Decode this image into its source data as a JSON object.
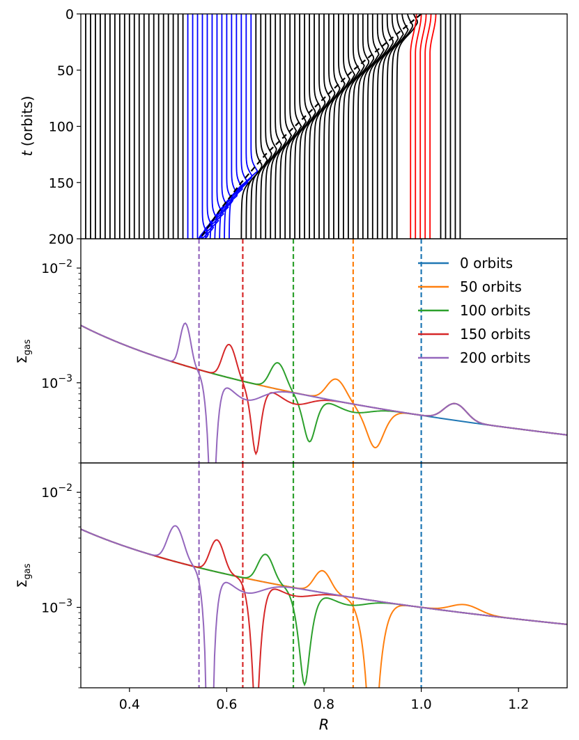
{
  "chart_data": [
    {
      "panel": "top",
      "type": "line",
      "title": "",
      "xlabel": "",
      "ylabel": "(orbits)",
      "ylabel_symbol": "t",
      "xlim": [
        0.3,
        1.3
      ],
      "ylim": [
        200,
        0
      ],
      "y_inverted": true,
      "y_ticks": [
        "0",
        "50",
        "100",
        "150",
        "200"
      ],
      "y_tick_values": [
        0,
        50,
        100,
        150,
        200
      ],
      "description_series": "Fluid-element radial trajectories R(t); black = background, blue = inner group, red = outer group; dashed black = resonance track",
      "line_start_R": {
        "first": 0.31,
        "step": 0.01,
        "count": 78
      },
      "blue_indices": [
        21,
        22,
        23,
        24,
        25,
        26,
        27,
        28,
        29,
        30,
        31,
        32,
        33,
        34
      ],
      "red_indices": [
        68,
        69,
        70,
        71,
        72
      ],
      "dashed_track": {
        "R": [
          1.0,
          0.93,
          0.86,
          0.8,
          0.74,
          0.68,
          0.63,
          0.585,
          0.545
        ],
        "t": [
          0,
          25,
          50,
          75,
          100,
          125,
          150,
          175,
          200
        ]
      },
      "colors": {
        "background": "#000000",
        "inner": "#0000ff",
        "outer": "#ff0000"
      }
    },
    {
      "panel": "middle",
      "type": "line",
      "xlabel": "",
      "ylabel": "gas",
      "ylabel_symbol": "Σ",
      "yscale": "log",
      "xlim": [
        0.3,
        1.3
      ],
      "ylim": [
        0.0002,
        0.018
      ],
      "y_ticks": [
        "10",
        "10"
      ],
      "y_tick_exponents": [
        "−2",
        "−3"
      ],
      "y_tick_values": [
        0.01,
        0.001
      ],
      "legend": {
        "placement": "top-right",
        "entries": [
          "0 orbits",
          "50 orbits",
          "100 orbits",
          "150 orbits",
          "200 orbits"
        ]
      },
      "base_profile": {
        "value_at_R1": 0.00052,
        "slope": -1.5
      },
      "series": [
        {
          "name": "0 orbits",
          "color": "#1f77b4",
          "bumps": []
        },
        {
          "name": "50 orbits",
          "color": "#ff7f0e",
          "bumps": [
            {
              "R": 0.825,
              "a": 0.55,
              "w": 0.025
            },
            {
              "R": 0.905,
              "a": -0.55,
              "w": 0.03
            },
            {
              "R": 1.07,
              "a": 0.4,
              "w": 0.03
            }
          ]
        },
        {
          "name": "100 orbits",
          "color": "#2ca02c",
          "bumps": [
            {
              "R": 0.705,
              "a": 0.7,
              "w": 0.02
            },
            {
              "R": 0.77,
              "a": -0.6,
              "w": 0.022
            },
            {
              "R": 0.86,
              "a": -0.15,
              "w": 0.05
            },
            {
              "R": 1.07,
              "a": 0.4,
              "w": 0.03
            }
          ]
        },
        {
          "name": "150 orbits",
          "color": "#d62728",
          "bumps": [
            {
              "R": 0.605,
              "a": 0.95,
              "w": 0.017
            },
            {
              "R": 0.66,
              "a": -0.75,
              "w": 0.018
            },
            {
              "R": 0.74,
              "a": -0.2,
              "w": 0.045
            },
            {
              "R": 1.07,
              "a": 0.4,
              "w": 0.03
            }
          ]
        },
        {
          "name": "200 orbits",
          "color": "#9467bd",
          "bumps": [
            {
              "R": 0.515,
              "a": 1.35,
              "w": 0.013
            },
            {
              "R": 0.57,
              "a": -1.0,
              "w": 0.017
            },
            {
              "R": 0.64,
              "a": -0.3,
              "w": 0.05
            },
            {
              "R": 1.07,
              "a": 0.4,
              "w": 0.03
            }
          ]
        }
      ],
      "vlines": [
        {
          "R": 1.0,
          "color": "#1f77b4"
        },
        {
          "R": 0.86,
          "color": "#ff7f0e"
        },
        {
          "R": 0.737,
          "color": "#2ca02c"
        },
        {
          "R": 0.633,
          "color": "#d62728"
        },
        {
          "R": 0.543,
          "color": "#9467bd"
        }
      ]
    },
    {
      "panel": "bottom",
      "type": "line",
      "xlabel": "R",
      "ylabel": "gas",
      "ylabel_symbol": "Σ",
      "yscale": "log",
      "xlim": [
        0.3,
        1.3
      ],
      "ylim": [
        0.0002,
        0.018
      ],
      "x_ticks": [
        "0.4",
        "0.6",
        "0.8",
        "1.0",
        "1.2"
      ],
      "x_tick_values": [
        0.4,
        0.6,
        0.8,
        1.0,
        1.2
      ],
      "y_ticks": [
        "10",
        "10"
      ],
      "y_tick_exponents": [
        "−2",
        "−3"
      ],
      "y_tick_values": [
        0.01,
        0.001
      ],
      "base_profile": {
        "value_at_R1": 0.001,
        "slope": -1.3
      },
      "series": [
        {
          "name": "0 orbits",
          "color": "#1f77b4",
          "bumps": []
        },
        {
          "name": "50 orbits",
          "color": "#ff7f0e",
          "bumps": [
            {
              "R": 0.797,
              "a": 0.55,
              "w": 0.022
            },
            {
              "R": 0.9,
              "a": -1.0,
              "w": 0.03
            },
            {
              "R": 1.09,
              "a": 0.18,
              "w": 0.04
            }
          ]
        },
        {
          "name": "100 orbits",
          "color": "#2ca02c",
          "bumps": [
            {
              "R": 0.68,
              "a": 0.75,
              "w": 0.02
            },
            {
              "R": 0.76,
              "a": -0.85,
              "w": 0.024
            },
            {
              "R": 0.85,
              "a": -0.15,
              "w": 0.05
            }
          ]
        },
        {
          "name": "150 orbits",
          "color": "#d62728",
          "bumps": [
            {
              "R": 0.58,
              "a": 0.9,
              "w": 0.018
            },
            {
              "R": 0.66,
              "a": -0.95,
              "w": 0.02
            },
            {
              "R": 0.74,
              "a": -0.15,
              "w": 0.05
            }
          ]
        },
        {
          "name": "200 orbits",
          "color": "#9467bd",
          "bumps": [
            {
              "R": 0.495,
              "a": 1.05,
              "w": 0.02
            },
            {
              "R": 0.565,
              "a": -1.1,
              "w": 0.018
            },
            {
              "R": 0.64,
              "a": -0.25,
              "w": 0.05
            }
          ]
        }
      ],
      "vlines": [
        {
          "R": 1.0,
          "color": "#1f77b4"
        },
        {
          "R": 0.86,
          "color": "#ff7f0e"
        },
        {
          "R": 0.737,
          "color": "#2ca02c"
        },
        {
          "R": 0.633,
          "color": "#d62728"
        },
        {
          "R": 0.543,
          "color": "#9467bd"
        }
      ]
    }
  ]
}
